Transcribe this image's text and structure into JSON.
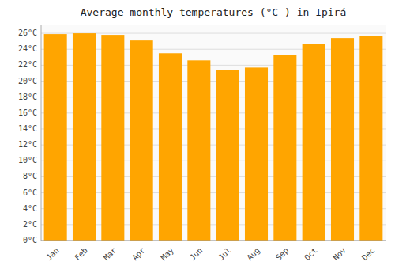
{
  "chart_data": {
    "type": "bar",
    "title": "Average monthly temperatures (°C ) in Ipirá",
    "categories": [
      "Jan",
      "Feb",
      "Mar",
      "Apr",
      "May",
      "Jun",
      "Jul",
      "Aug",
      "Sep",
      "Oct",
      "Nov",
      "Dec"
    ],
    "values": [
      25.9,
      26.0,
      25.8,
      25.1,
      23.5,
      22.6,
      21.4,
      21.7,
      23.3,
      24.7,
      25.4,
      25.7
    ],
    "color": "#FFA500",
    "ylim": [
      0,
      27
    ],
    "yticks": [
      {
        "value": 0,
        "label": "0°C"
      },
      {
        "value": 2,
        "label": "2°C"
      },
      {
        "value": 4,
        "label": "4°C"
      },
      {
        "value": 6,
        "label": "6°C"
      },
      {
        "value": 8,
        "label": "8°C"
      },
      {
        "value": 10,
        "label": "10°C"
      },
      {
        "value": 12,
        "label": "12°C"
      },
      {
        "value": 14,
        "label": "14°C"
      },
      {
        "value": 16,
        "label": "16°C"
      },
      {
        "value": 18,
        "label": "18°C"
      },
      {
        "value": 20,
        "label": "20°C"
      },
      {
        "value": 22,
        "label": "22°C"
      },
      {
        "value": 24,
        "label": "24°C"
      },
      {
        "value": 26,
        "label": "26°C"
      }
    ],
    "grid": true
  }
}
